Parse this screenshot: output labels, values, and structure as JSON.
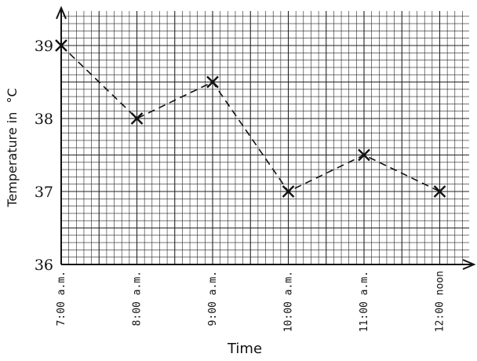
{
  "chart_data": {
    "type": "line",
    "title": "",
    "xlabel": "Time",
    "ylabel": "Temperature in",
    "ylabel_unit": "°C",
    "categories": [
      "7:00 a.m.",
      "8:00 a.m.",
      "9:00 a.m.",
      "10:00 a.m.",
      "11:00 a.m.",
      "12:00 noon"
    ],
    "values": [
      39,
      38,
      38.5,
      37,
      37.5,
      37
    ],
    "yticks": [
      36,
      37,
      38,
      39
    ],
    "ylim": [
      36,
      39.5
    ],
    "grid": true,
    "line_style": "dashed",
    "marker": "x"
  }
}
